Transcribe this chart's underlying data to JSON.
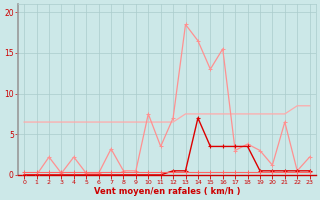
{
  "x": [
    0,
    1,
    2,
    3,
    4,
    5,
    6,
    7,
    8,
    9,
    10,
    11,
    12,
    13,
    14,
    15,
    16,
    17,
    18,
    19,
    20,
    21,
    22,
    23
  ],
  "rafales": [
    0,
    0,
    2.2,
    0.2,
    2.2,
    0.2,
    0.2,
    3.2,
    0.5,
    0.5,
    7.5,
    3.5,
    7.0,
    18.5,
    16.5,
    13.0,
    15.5,
    3.0,
    3.8,
    3.0,
    1.2,
    6.5,
    0.5,
    2.2
  ],
  "moyen": [
    0,
    0,
    0,
    0,
    0,
    0,
    0,
    0,
    0,
    0,
    0,
    0,
    0.5,
    0.5,
    7.0,
    3.5,
    3.5,
    3.5,
    3.5,
    0.5,
    0.5,
    0.5,
    0.5,
    0.5
  ],
  "line_flat": [
    6.5,
    6.5,
    6.5,
    6.5,
    6.5,
    6.5,
    6.5,
    6.5,
    6.5,
    6.5,
    6.5,
    6.5,
    6.5,
    7.5,
    7.5,
    7.5,
    7.5,
    7.5,
    7.5,
    7.5,
    7.5,
    7.5,
    8.5,
    8.5
  ],
  "line_low": [
    0.3,
    0.3,
    0.3,
    0.3,
    0.3,
    0.3,
    0.3,
    0.3,
    0.3,
    0.3,
    0.3,
    0.3,
    0.3,
    0.3,
    0.3,
    0.3,
    0.3,
    0.3,
    0.3,
    0.3,
    0.3,
    0.3,
    0.3,
    0.3
  ],
  "bg_color": "#cce8e8",
  "grid_color": "#aacccc",
  "line_color_rafales": "#ff9090",
  "line_color_moyen": "#dd0000",
  "line_color_flat": "#ffaaaa",
  "line_color_low": "#ff6666",
  "axis_color": "#cc0000",
  "tick_color": "#cc0000",
  "xlabel": "Vent moyen/en rafales ( km/h )",
  "ylim": [
    0,
    21
  ],
  "xlim": [
    -0.5,
    23.5
  ],
  "yticks": [
    0,
    5,
    10,
    15,
    20
  ],
  "xticks": [
    0,
    1,
    2,
    3,
    4,
    5,
    6,
    7,
    8,
    9,
    10,
    11,
    12,
    13,
    14,
    15,
    16,
    17,
    18,
    19,
    20,
    21,
    22,
    23
  ]
}
